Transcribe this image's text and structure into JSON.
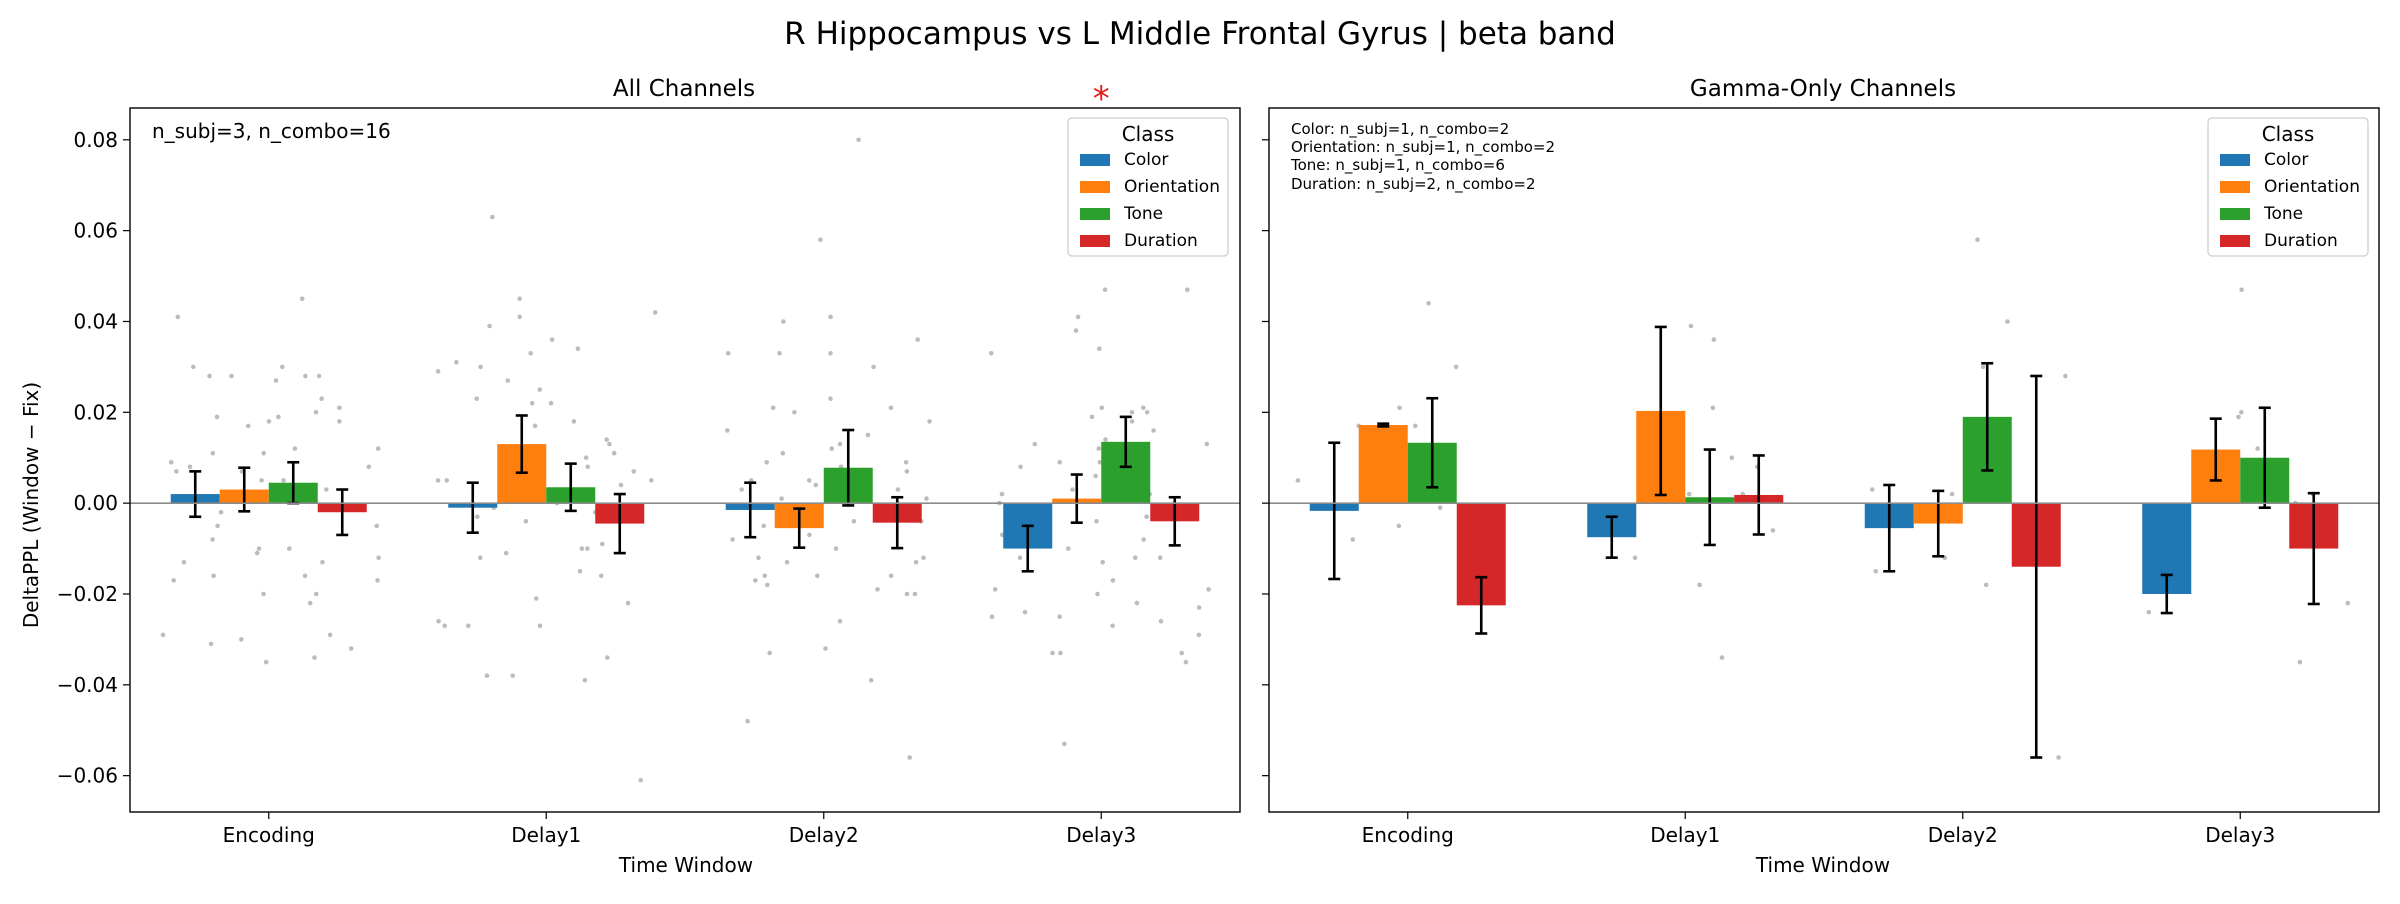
{
  "figure": {
    "suptitle": "R Hippocampus vs L Middle Frontal Gyrus  |  beta band",
    "colors": {
      "Color": "#1f77b4",
      "Orientation": "#ff7f0e",
      "Tone": "#2ca02c",
      "Duration": "#d62728",
      "points": "#b0b0b0",
      "significance": "#e41a1c"
    }
  },
  "chart_data": [
    {
      "type": "bar",
      "title": "All Channels",
      "xlabel": "Time Window",
      "ylabel": "DeltaPPL (Window − Fix)",
      "ylim": [
        -0.068,
        0.087
      ],
      "yticks": [
        -0.06,
        -0.04,
        -0.02,
        0.0,
        0.02,
        0.04,
        0.06,
        0.08
      ],
      "ytick_labels": [
        "−0.06",
        "−0.04",
        "−0.02",
        "0.00",
        "0.02",
        "0.04",
        "0.06",
        "0.08"
      ],
      "categories": [
        "Encoding",
        "Delay1",
        "Delay2",
        "Delay3"
      ],
      "legend": {
        "title": "Class",
        "placement": "top-right"
      },
      "annotation": "n_subj=3, n_combo=16",
      "significance": [
        {
          "category": "Delay3",
          "label": "*"
        }
      ],
      "series": [
        {
          "name": "Color",
          "values": [
            0.002,
            -0.001,
            -0.0015,
            -0.01
          ],
          "errors": [
            0.005,
            0.0055,
            0.006,
            0.005
          ]
        },
        {
          "name": "Orientation",
          "values": [
            0.003,
            0.013,
            -0.0055,
            0.001
          ],
          "errors": [
            0.0048,
            0.0063,
            0.0043,
            0.0053
          ]
        },
        {
          "name": "Tone",
          "values": [
            0.0045,
            0.0035,
            0.0078,
            0.0135
          ],
          "errors": [
            0.0045,
            0.0052,
            0.0083,
            0.0055
          ]
        },
        {
          "name": "Duration",
          "values": [
            -0.002,
            -0.0045,
            -0.0043,
            -0.004
          ],
          "errors": [
            0.005,
            0.0065,
            0.0056,
            0.0053
          ]
        }
      ],
      "scatter": [
        [
          [
            -0.031,
            -0.017,
            -0.016,
            -0.013,
            -0.005,
            0.001,
            0.007,
            0.009,
            0.041,
            0.03,
            0.028,
            0.019,
            -0.029,
            0.008
          ],
          [
            -0.02,
            -0.011,
            -0.01,
            -0.008,
            0.018,
            0.027,
            0.028,
            0.011,
            0.007,
            0.005,
            0.002,
            -0.03,
            0.017,
            -0.002
          ],
          [
            -0.02,
            -0.013,
            -0.01,
            0.001,
            0.011,
            0.028,
            0.03,
            0.019,
            0.045,
            0.012,
            -0.016,
            0.005,
            -0.035,
            0.023
          ],
          [
            -0.034,
            -0.032,
            -0.029,
            -0.022,
            -0.017,
            -0.012,
            0.008,
            0.018,
            0.021,
            0.028,
            0.02,
            0.012,
            0.003,
            -0.005
          ]
        ],
        [
          [
            -0.027,
            -0.027,
            -0.026,
            -0.012,
            -0.003,
            0.031,
            0.03,
            0.005,
            0.029,
            0.023,
            0.005,
            -0.001,
            -0.038,
            0.01
          ],
          [
            -0.038,
            0.045,
            0.063,
            0.027,
            0.022,
            0.041,
            0.039,
            0.033,
            0.017,
            0.006,
            -0.011,
            0.0,
            0.012,
            -0.004
          ],
          [
            -0.034,
            -0.027,
            -0.015,
            -0.01,
            -0.002,
            0.01,
            0.025,
            0.036,
            0.034,
            0.022,
            0.008,
            0.005,
            0.018,
            -0.021
          ],
          [
            -0.061,
            -0.039,
            -0.016,
            -0.01,
            -0.004,
            0.005,
            0.013,
            0.042,
            0.014,
            0.011,
            0.007,
            -0.022,
            0.004,
            -0.009
          ]
        ],
        [
          [
            -0.048,
            -0.017,
            -0.016,
            -0.012,
            -0.005,
            0.003,
            0.033,
            0.033,
            0.04,
            0.005,
            -0.008,
            -0.001,
            0.016,
            0.011
          ],
          [
            -0.033,
            -0.032,
            -0.018,
            -0.013,
            -0.007,
            0.02,
            0.021,
            0.012,
            0.009,
            0.005,
            -0.01,
            0.004,
            -0.016,
            0.001
          ],
          [
            -0.039,
            -0.026,
            -0.019,
            0.008,
            0.023,
            0.033,
            0.03,
            0.058,
            0.08,
            0.041,
            0.015,
            0.001,
            -0.004,
            0.013
          ],
          [
            -0.056,
            -0.02,
            -0.02,
            -0.016,
            -0.013,
            0.003,
            0.021,
            0.036,
            0.009,
            0.007,
            0.001,
            -0.004,
            -0.012,
            0.018
          ]
        ],
        [
          [
            -0.053,
            -0.025,
            -0.025,
            -0.024,
            -0.007,
            0.0,
            0.033,
            0.013,
            0.009,
            0.002,
            -0.012,
            -0.019,
            -0.033,
            0.008
          ],
          [
            -0.033,
            -0.013,
            -0.01,
            -0.004,
            0.013,
            0.021,
            0.034,
            0.038,
            0.041,
            0.019,
            0.012,
            0.006,
            -0.02,
            0.003
          ],
          [
            -0.022,
            -0.017,
            -0.012,
            0.005,
            0.014,
            0.02,
            0.021,
            0.047,
            0.018,
            0.01,
            -0.003,
            -0.027,
            0.009,
            0.003
          ],
          [
            -0.035,
            -0.033,
            -0.026,
            -0.023,
            -0.012,
            0.009,
            0.013,
            0.047,
            0.02,
            0.016,
            -0.008,
            -0.029,
            -0.019,
            0.002
          ]
        ]
      ]
    },
    {
      "type": "bar",
      "title": "Gamma-Only Channels",
      "xlabel": "Time Window",
      "ylim": [
        -0.068,
        0.087
      ],
      "categories": [
        "Encoding",
        "Delay1",
        "Delay2",
        "Delay3"
      ],
      "legend": {
        "title": "Class",
        "placement": "top-right"
      },
      "annotation_lines": [
        "Color: n_subj=1, n_combo=2",
        "Orientation: n_subj=1, n_combo=2",
        "Tone: n_subj=1, n_combo=6",
        "Duration: n_subj=2, n_combo=2"
      ],
      "series": [
        {
          "name": "Color",
          "values": [
            -0.0017,
            -0.0075,
            -0.0055,
            -0.02
          ],
          "errors": [
            0.015,
            0.0045,
            0.0095,
            0.0042
          ]
        },
        {
          "name": "Orientation",
          "values": [
            0.0172,
            0.0203,
            -0.0045,
            0.0118
          ],
          "errors": [
            0.0003,
            0.0185,
            0.0072,
            0.0068
          ]
        },
        {
          "name": "Tone",
          "values": [
            0.0133,
            0.0013,
            0.019,
            0.01
          ],
          "errors": [
            0.0098,
            0.0105,
            0.0118,
            0.011
          ]
        },
        {
          "name": "Duration",
          "values": [
            -0.0225,
            0.0018,
            -0.014,
            -0.01
          ],
          "errors": [
            0.0062,
            0.0087,
            0.042,
            0.0122
          ]
        }
      ],
      "scatter": [
        [
          [
            -0.008,
            0.005
          ],
          [
            0.017,
            0.017
          ],
          [
            0.044,
            0.03,
            0.021,
            0.003,
            -0.001,
            -0.005
          ],
          [
            -0.021,
            -0.013
          ]
        ],
        [
          [
            -0.012,
            -0.003
          ],
          [
            0.039,
            0.002
          ],
          [
            0.036,
            0.021,
            0.01,
            0.002,
            -0.018,
            -0.034
          ],
          [
            0.008,
            -0.006
          ]
        ],
        [
          [
            0.003,
            -0.015
          ],
          [
            0.002,
            -0.012
          ],
          [
            0.058,
            0.04,
            0.03,
            0.018,
            0.009,
            -0.018
          ],
          [
            0.028,
            -0.056
          ]
        ],
        [
          [
            -0.016,
            -0.024
          ],
          [
            0.019,
            0.005
          ],
          [
            0.047,
            0.02,
            0.012,
            0.009,
            0.0,
            -0.035
          ],
          [
            0.002,
            -0.022
          ]
        ]
      ]
    }
  ]
}
